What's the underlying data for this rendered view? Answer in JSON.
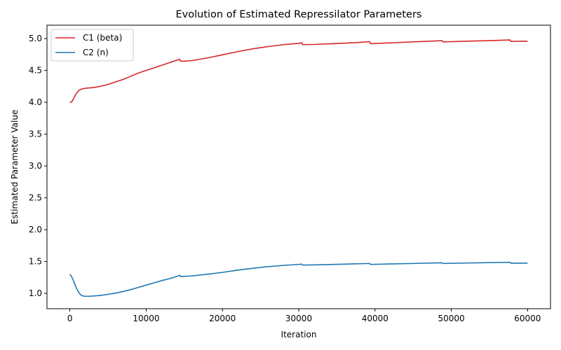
{
  "chart_data": {
    "type": "line",
    "title": "Evolution of Estimated Repressilator Parameters",
    "xlabel": "Iteration",
    "ylabel": "Estimated Parameter Value",
    "xlim": [
      -3000,
      63000
    ],
    "ylim": [
      0.76,
      5.21
    ],
    "xticks": [
      0,
      10000,
      20000,
      30000,
      40000,
      50000,
      60000
    ],
    "xtick_labels": [
      "0",
      "10000",
      "20000",
      "30000",
      "40000",
      "50000",
      "60000"
    ],
    "yticks": [
      1.0,
      1.5,
      2.0,
      2.5,
      3.0,
      3.5,
      4.0,
      4.5,
      5.0
    ],
    "ytick_labels": [
      "1.0",
      "1.5",
      "2.0",
      "2.5",
      "3.0",
      "3.5",
      "4.0",
      "4.5",
      "5.0"
    ],
    "grid": false,
    "legend_position": "top-left",
    "series": [
      {
        "name": "C1 (beta)",
        "color": "#d62728",
        "x": [
          0,
          200,
          500,
          800,
          1200,
          1600,
          2000,
          3000,
          4000,
          5000,
          6000,
          7000,
          8000,
          9000,
          10000,
          11000,
          12000,
          13000,
          14000,
          14400,
          14500,
          15000,
          16000,
          18000,
          20000,
          22000,
          24000,
          26000,
          28000,
          30000,
          30400,
          30500,
          32000,
          34000,
          36000,
          38000,
          39300,
          39400,
          41000,
          43000,
          45000,
          47000,
          48800,
          48900,
          51000,
          53000,
          55000,
          57700,
          57800,
          59000,
          60000
        ],
        "y": [
          4.0,
          4.0,
          4.06,
          4.13,
          4.19,
          4.21,
          4.22,
          4.23,
          4.25,
          4.28,
          4.32,
          4.36,
          4.41,
          4.46,
          4.5,
          4.54,
          4.58,
          4.62,
          4.66,
          4.675,
          4.645,
          4.645,
          4.655,
          4.695,
          4.745,
          4.795,
          4.84,
          4.875,
          4.905,
          4.925,
          4.935,
          4.905,
          4.908,
          4.918,
          4.928,
          4.94,
          4.952,
          4.92,
          4.928,
          4.938,
          4.948,
          4.958,
          4.968,
          4.948,
          4.955,
          4.962,
          4.968,
          4.978,
          4.955,
          4.958,
          4.958
        ]
      },
      {
        "name": "C2 (n)",
        "color": "#1f77b4",
        "x": [
          0,
          200,
          400,
          600,
          800,
          1000,
          1200,
          1400,
          1600,
          1800,
          2000,
          2500,
          3000,
          4000,
          5000,
          6000,
          7000,
          8000,
          9000,
          10000,
          11000,
          12000,
          13000,
          14000,
          14400,
          14500,
          16000,
          18000,
          20000,
          22000,
          24000,
          26000,
          28000,
          30000,
          30400,
          30500,
          33000,
          36000,
          39300,
          39400,
          42000,
          45000,
          48800,
          48900,
          52000,
          55000,
          57700,
          57800,
          60000
        ],
        "y": [
          1.3,
          1.27,
          1.22,
          1.16,
          1.1,
          1.05,
          1.01,
          0.98,
          0.965,
          0.958,
          0.955,
          0.955,
          0.958,
          0.968,
          0.985,
          1.005,
          1.03,
          1.06,
          1.095,
          1.13,
          1.165,
          1.2,
          1.23,
          1.265,
          1.285,
          1.265,
          1.275,
          1.3,
          1.33,
          1.365,
          1.395,
          1.42,
          1.44,
          1.455,
          1.46,
          1.445,
          1.45,
          1.46,
          1.47,
          1.455,
          1.462,
          1.47,
          1.48,
          1.47,
          1.477,
          1.483,
          1.488,
          1.475,
          1.475
        ]
      }
    ]
  }
}
